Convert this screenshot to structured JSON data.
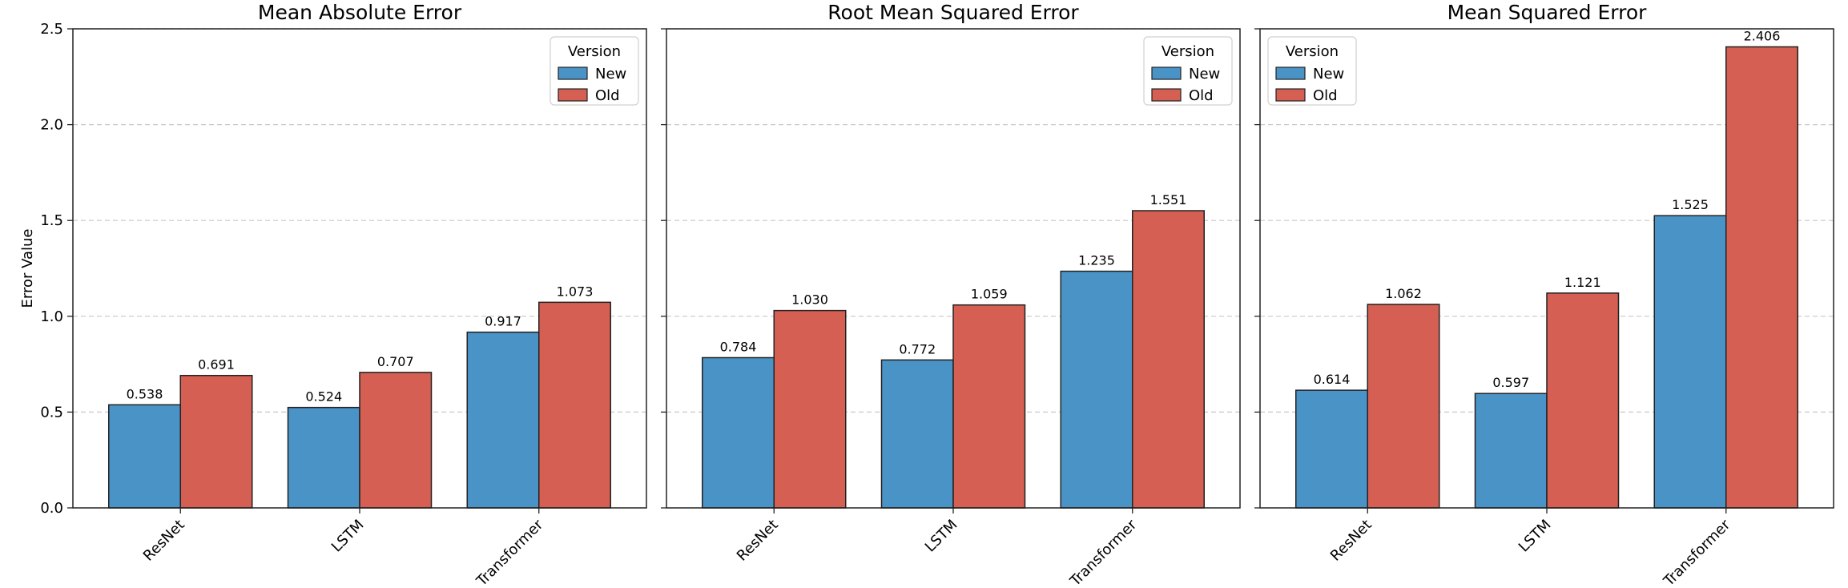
{
  "chart_data": [
    {
      "type": "bar",
      "title": "Mean Absolute Error",
      "ylabel": "Error Value",
      "categories": [
        "ResNet",
        "LSTM",
        "Transformer"
      ],
      "series": [
        {
          "name": "New",
          "values": [
            0.538,
            0.524,
            0.917
          ],
          "color": "#4a93c6"
        },
        {
          "name": "Old",
          "values": [
            0.691,
            0.707,
            1.073
          ],
          "color": "#d45f52"
        }
      ],
      "value_labels": [
        [
          "0.538",
          "0.524",
          "0.917"
        ],
        [
          "0.691",
          "0.707",
          "1.073"
        ]
      ],
      "legend": {
        "title": "Version",
        "position": "top-right"
      }
    },
    {
      "type": "bar",
      "title": "Root Mean Squared Error",
      "categories": [
        "ResNet",
        "LSTM",
        "Transformer"
      ],
      "series": [
        {
          "name": "New",
          "values": [
            0.784,
            0.772,
            1.235
          ],
          "color": "#4a93c6"
        },
        {
          "name": "Old",
          "values": [
            1.03,
            1.059,
            1.551
          ],
          "color": "#d45f52"
        }
      ],
      "value_labels": [
        [
          "0.784",
          "0.772",
          "1.235"
        ],
        [
          "1.030",
          "1.059",
          "1.551"
        ]
      ],
      "legend": {
        "title": "Version",
        "position": "top-right"
      }
    },
    {
      "type": "bar",
      "title": "Mean Squared Error",
      "categories": [
        "ResNet",
        "LSTM",
        "Transformer"
      ],
      "series": [
        {
          "name": "New",
          "values": [
            0.614,
            0.597,
            1.525
          ],
          "color": "#4a93c6"
        },
        {
          "name": "Old",
          "values": [
            1.062,
            1.121,
            2.406
          ],
          "color": "#d45f52"
        }
      ],
      "value_labels": [
        [
          "0.614",
          "0.597",
          "1.525"
        ],
        [
          "1.062",
          "1.121",
          "2.406"
        ]
      ],
      "legend": {
        "title": "Version",
        "position": "top-left"
      }
    }
  ],
  "shared_y_axis": {
    "ylim": [
      0,
      2.5
    ],
    "ticks": [
      0,
      0.5,
      1.0,
      1.5,
      2.0,
      2.5
    ],
    "tick_labels": [
      "0.0",
      "0.5",
      "1.0",
      "1.5",
      "2.0",
      "2.5"
    ],
    "grid": true,
    "grid_style": "dashed-horizontal"
  }
}
